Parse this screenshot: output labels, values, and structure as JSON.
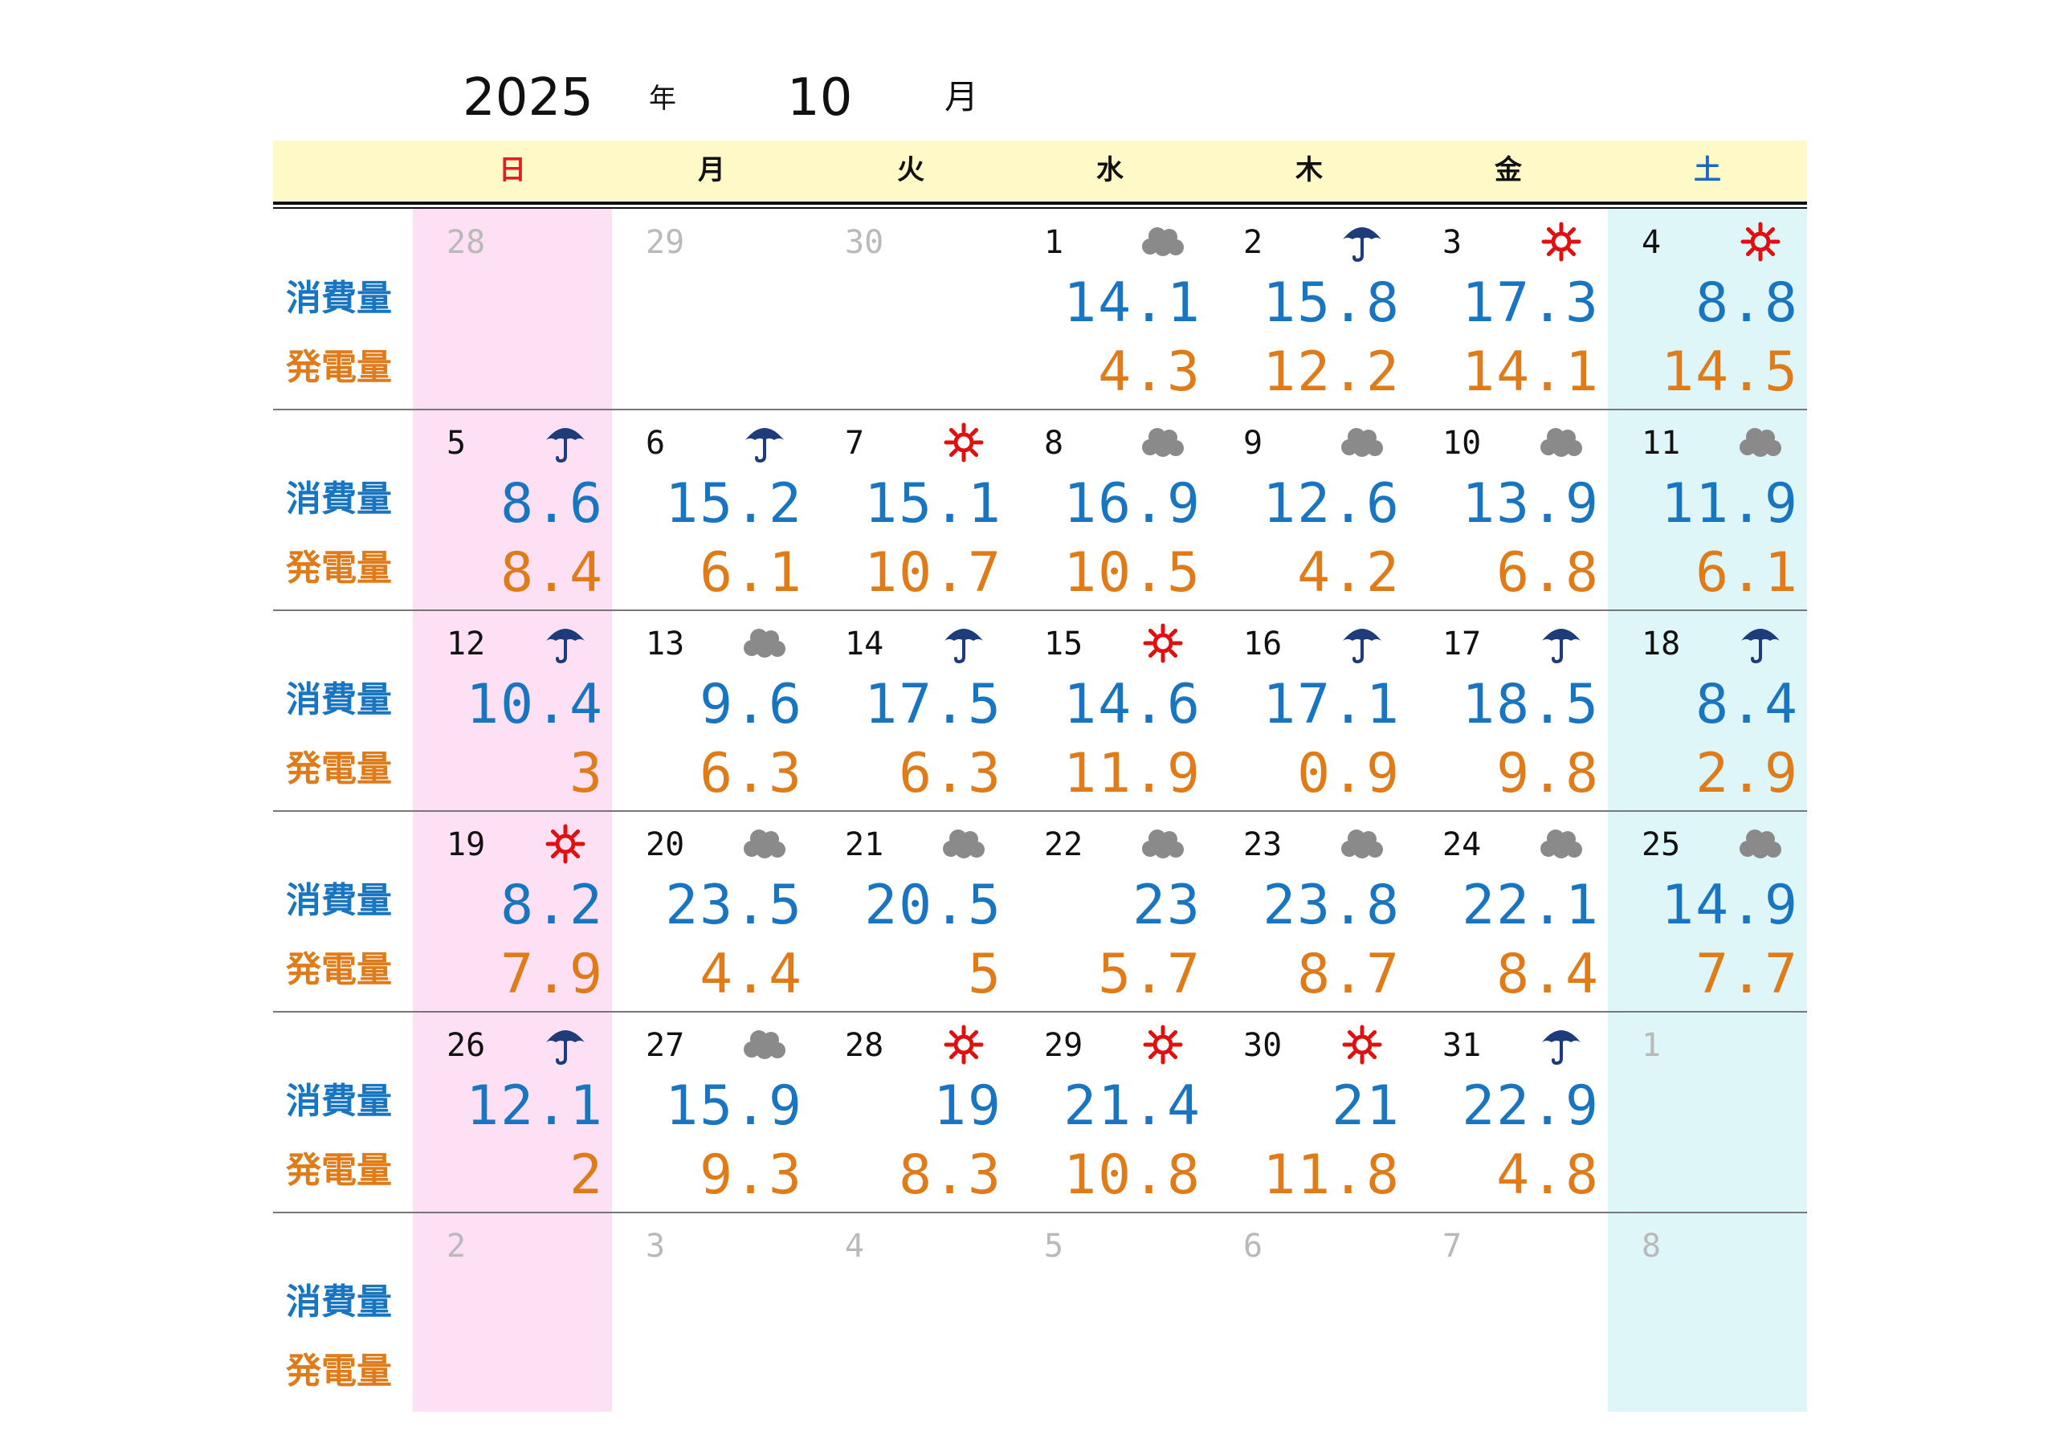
{
  "header": {
    "year": "2025",
    "year_unit": "年",
    "month": "10",
    "month_unit": "月"
  },
  "weekdays": [
    "日",
    "月",
    "火",
    "水",
    "木",
    "金",
    "土"
  ],
  "row_labels": {
    "consumption": "消費量",
    "generation": "発電量"
  },
  "colors": {
    "consumption": "#1a75c0",
    "generation": "#e07b1a",
    "sunday": "#e02020",
    "saturday": "#1a66c9",
    "sunday_bg": "#fde0f3",
    "saturday_bg": "#dff6f9",
    "header_bg": "#fff9c8",
    "sun_icon": "#e01010",
    "rain_icon": "#1e3c7a",
    "cloud_icon": "#8a8a8a"
  },
  "weeks": [
    [
      {
        "day": "28",
        "other": true
      },
      {
        "day": "29",
        "other": true
      },
      {
        "day": "30",
        "other": true
      },
      {
        "day": "1",
        "weather": "cloud-icon",
        "consumption": "14.1",
        "generation": "4.3"
      },
      {
        "day": "2",
        "weather": "umbrella-icon",
        "consumption": "15.8",
        "generation": "12.2"
      },
      {
        "day": "3",
        "weather": "sun-icon",
        "consumption": "17.3",
        "generation": "14.1"
      },
      {
        "day": "4",
        "weather": "sun-icon",
        "consumption": "8.8",
        "generation": "14.5"
      }
    ],
    [
      {
        "day": "5",
        "weather": "umbrella-icon",
        "consumption": "8.6",
        "generation": "8.4"
      },
      {
        "day": "6",
        "weather": "umbrella-icon",
        "consumption": "15.2",
        "generation": "6.1"
      },
      {
        "day": "7",
        "weather": "sun-icon",
        "consumption": "15.1",
        "generation": "10.7"
      },
      {
        "day": "8",
        "weather": "cloud-icon",
        "consumption": "16.9",
        "generation": "10.5"
      },
      {
        "day": "9",
        "weather": "cloud-icon",
        "consumption": "12.6",
        "generation": "4.2"
      },
      {
        "day": "10",
        "weather": "cloud-icon",
        "consumption": "13.9",
        "generation": "6.8"
      },
      {
        "day": "11",
        "weather": "cloud-icon",
        "consumption": "11.9",
        "generation": "6.1"
      }
    ],
    [
      {
        "day": "12",
        "weather": "umbrella-icon",
        "consumption": "10.4",
        "generation": "3"
      },
      {
        "day": "13",
        "weather": "cloud-icon",
        "consumption": "9.6",
        "generation": "6.3"
      },
      {
        "day": "14",
        "weather": "umbrella-icon",
        "consumption": "17.5",
        "generation": "6.3"
      },
      {
        "day": "15",
        "weather": "sun-icon",
        "consumption": "14.6",
        "generation": "11.9"
      },
      {
        "day": "16",
        "weather": "umbrella-icon",
        "consumption": "17.1",
        "generation": "0.9"
      },
      {
        "day": "17",
        "weather": "umbrella-icon",
        "consumption": "18.5",
        "generation": "9.8"
      },
      {
        "day": "18",
        "weather": "umbrella-icon",
        "consumption": "8.4",
        "generation": "2.9"
      }
    ],
    [
      {
        "day": "19",
        "weather": "sun-icon",
        "consumption": "8.2",
        "generation": "7.9"
      },
      {
        "day": "20",
        "weather": "cloud-icon",
        "consumption": "23.5",
        "generation": "4.4"
      },
      {
        "day": "21",
        "weather": "cloud-icon",
        "consumption": "20.5",
        "generation": "5"
      },
      {
        "day": "22",
        "weather": "cloud-icon",
        "consumption": "23",
        "generation": "5.7"
      },
      {
        "day": "23",
        "weather": "cloud-icon",
        "consumption": "23.8",
        "generation": "8.7"
      },
      {
        "day": "24",
        "weather": "cloud-icon",
        "consumption": "22.1",
        "generation": "8.4"
      },
      {
        "day": "25",
        "weather": "cloud-icon",
        "consumption": "14.9",
        "generation": "7.7"
      }
    ],
    [
      {
        "day": "26",
        "weather": "umbrella-icon",
        "consumption": "12.1",
        "generation": "2"
      },
      {
        "day": "27",
        "weather": "cloud-icon",
        "consumption": "15.9",
        "generation": "9.3"
      },
      {
        "day": "28",
        "weather": "sun-icon",
        "consumption": "19",
        "generation": "8.3"
      },
      {
        "day": "29",
        "weather": "sun-icon",
        "consumption": "21.4",
        "generation": "10.8"
      },
      {
        "day": "30",
        "weather": "sun-icon",
        "consumption": "21",
        "generation": "11.8"
      },
      {
        "day": "31",
        "weather": "umbrella-icon",
        "consumption": "22.9",
        "generation": "4.8"
      },
      {
        "day": "1",
        "other": true
      }
    ],
    [
      {
        "day": "2",
        "other": true
      },
      {
        "day": "3",
        "other": true
      },
      {
        "day": "4",
        "other": true
      },
      {
        "day": "5",
        "other": true
      },
      {
        "day": "6",
        "other": true
      },
      {
        "day": "7",
        "other": true
      },
      {
        "day": "8",
        "other": true
      }
    ]
  ]
}
